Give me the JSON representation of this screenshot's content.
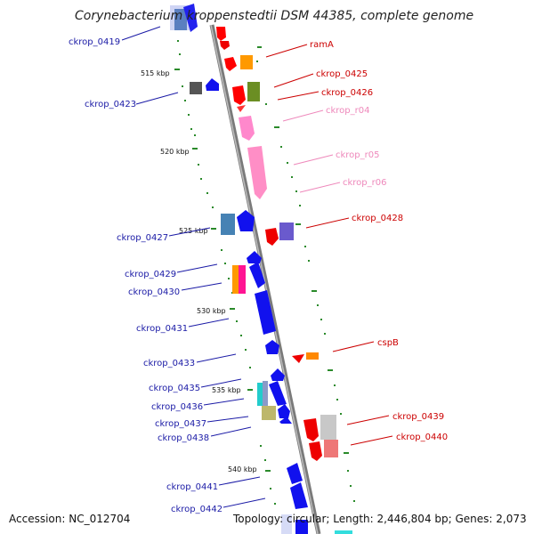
{
  "title": "Corynebacterium kroppenstedtii DSM 44385, complete genome",
  "accession": "Accession: NC_012704",
  "topology": "Topology: circular; Length: 2,446,804 bp; Genes: 2,073",
  "colors": {
    "left_label": "#1a1aa6",
    "right_label": "#cc0000",
    "rna_label": "#ee88bb",
    "backbone": "#888888",
    "tick": "#2a8a2a"
  },
  "kbp_marks": [
    "515 kbp",
    "520 kbp",
    "525 kbp",
    "530 kbp",
    "535 kbp",
    "540 kbp"
  ],
  "labels_left": [
    "ckrop_0419",
    "ckrop_0423",
    "ckrop_0427",
    "ckrop_0429",
    "ckrop_0430",
    "ckrop_0431",
    "ckrop_0433",
    "ckrop_0435",
    "ckrop_0436",
    "ckrop_0437",
    "ckrop_0438",
    "ckrop_0441",
    "ckrop_0442"
  ],
  "labels_right": [
    "ramA",
    "ckrop_0425",
    "ckrop_0426",
    "ckrop_r04",
    "ckrop_r05",
    "ckrop_r06",
    "ckrop_0428",
    "cspB",
    "ckrop_0439",
    "ckrop_0440"
  ]
}
